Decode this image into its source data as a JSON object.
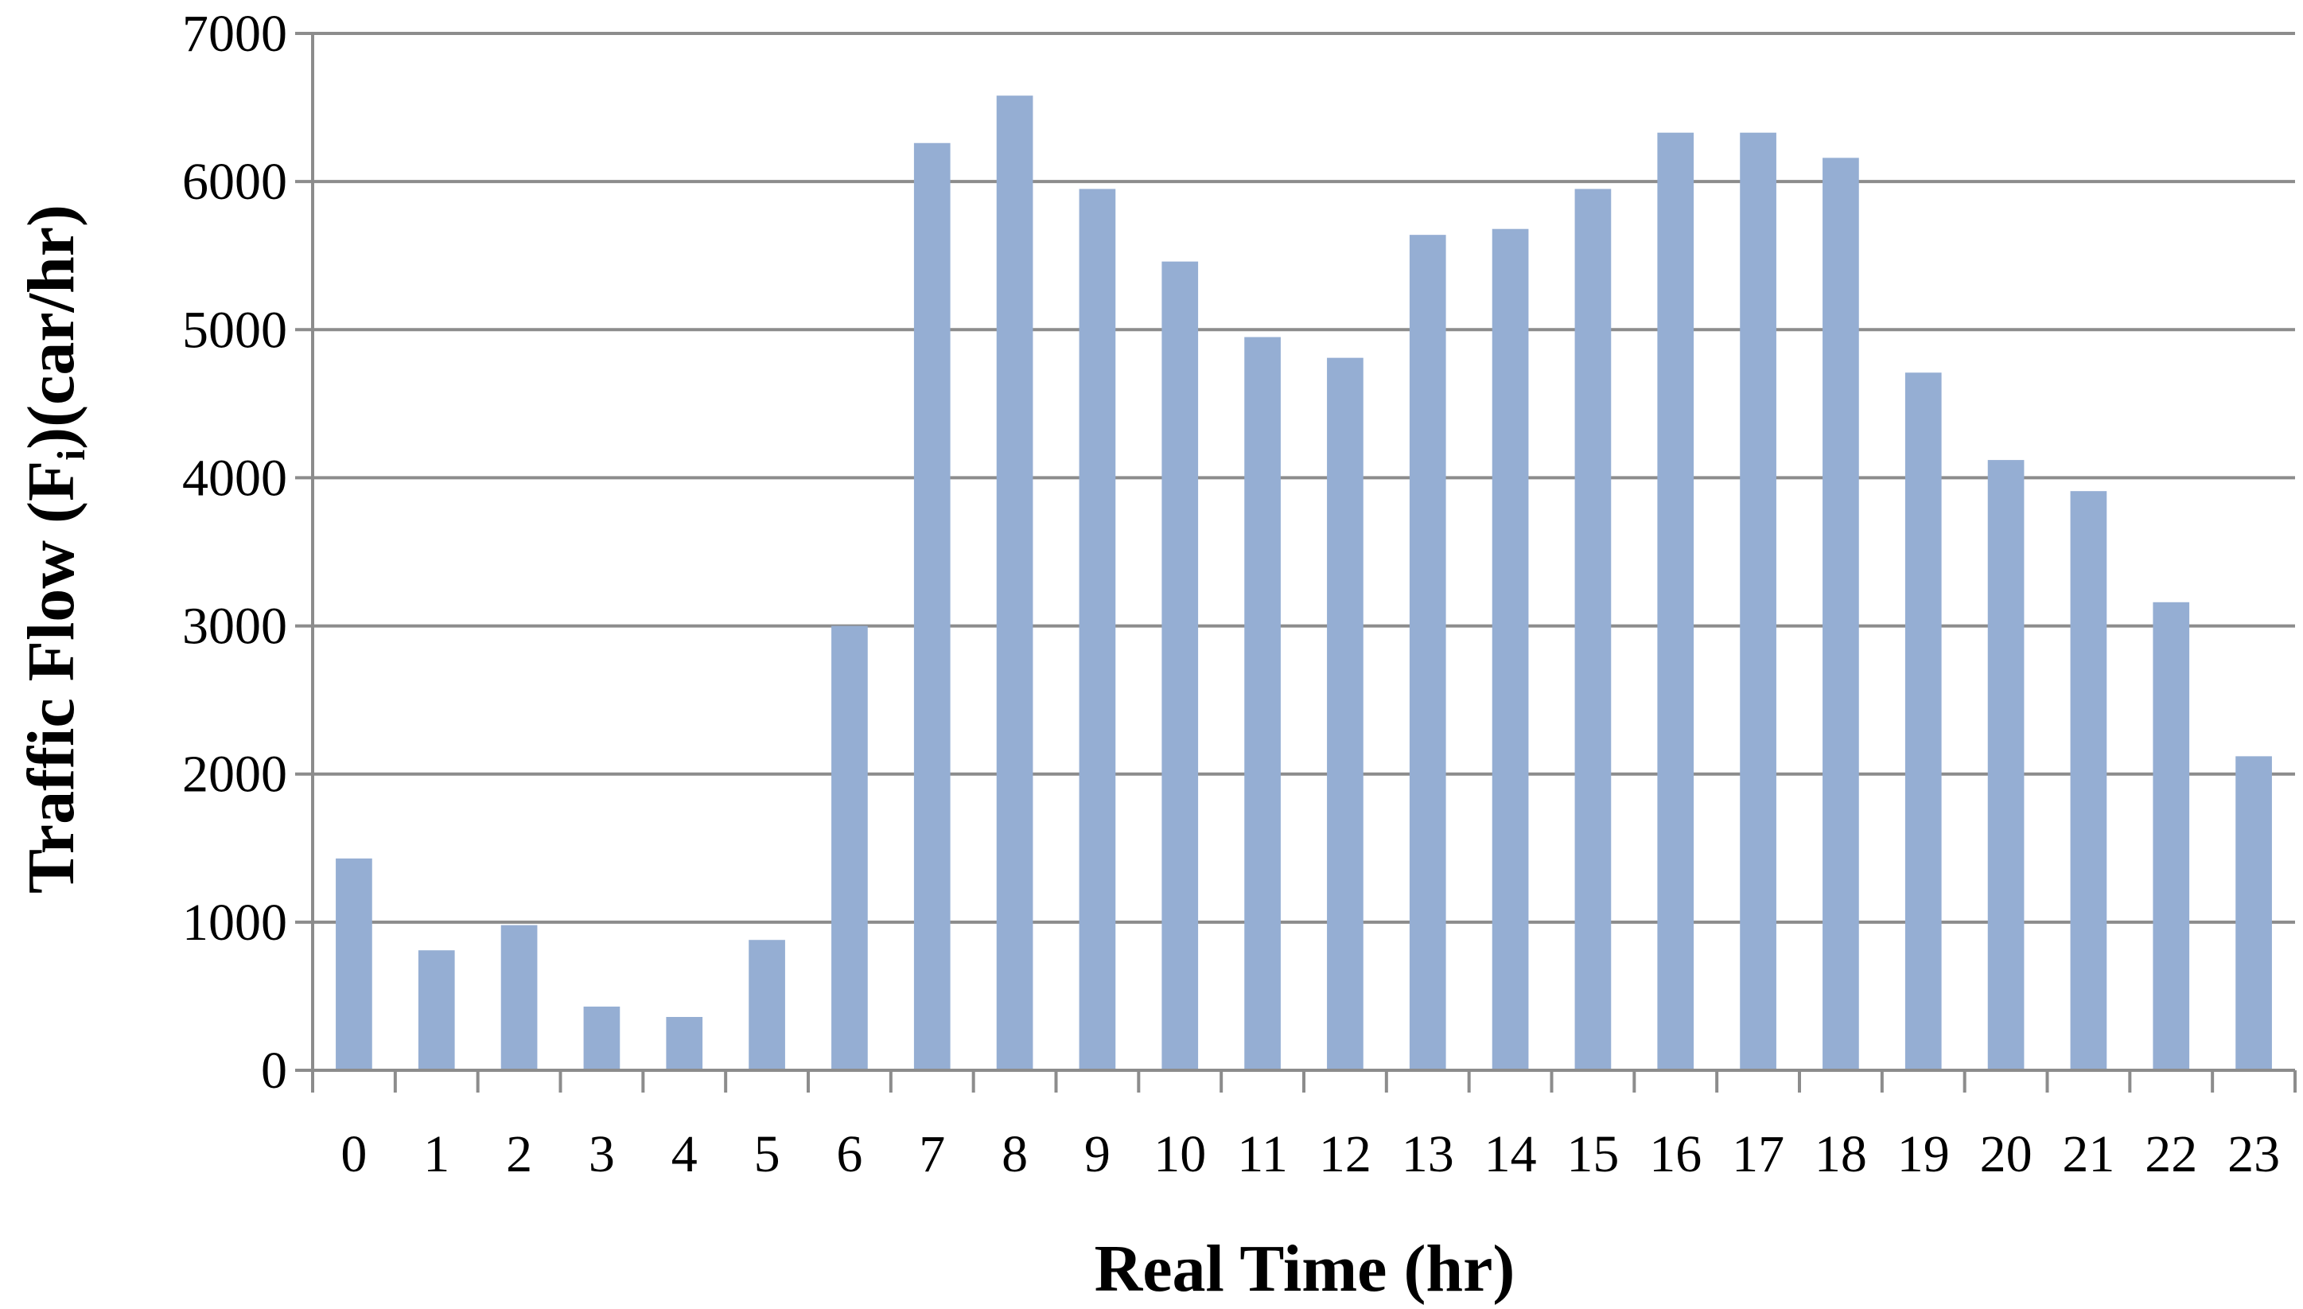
{
  "chart_data": {
    "type": "bar",
    "title": "",
    "xlabel": "Real Time  (hr)",
    "ylabel": {
      "before_sub": "Traffic  Flow  (F",
      "sub": "i",
      "after_sub": ")(car/hr)"
    },
    "ylim": [
      0,
      7000
    ],
    "yticks": [
      0,
      1000,
      2000,
      3000,
      4000,
      5000,
      6000,
      7000
    ],
    "grid": true,
    "legend": "none",
    "bar_color": "#95AED3",
    "categories": [
      "0",
      "1",
      "2",
      "3",
      "4",
      "5",
      "6",
      "7",
      "8",
      "9",
      "10",
      "11",
      "12",
      "13",
      "14",
      "15",
      "16",
      "17",
      "18",
      "19",
      "20",
      "21",
      "22",
      "23"
    ],
    "values": [
      1430,
      810,
      980,
      430,
      360,
      880,
      3000,
      6260,
      6580,
      5950,
      5460,
      4950,
      4810,
      5640,
      5680,
      5950,
      6330,
      6330,
      6160,
      4710,
      4120,
      3910,
      3160,
      2120
    ]
  }
}
